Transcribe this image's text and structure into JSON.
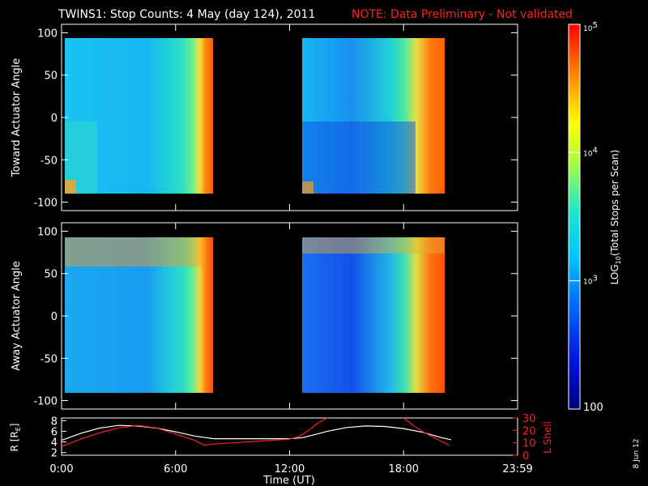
{
  "header": {
    "title": "TWINS1: Stop Counts:  4 May (day 124), 2011",
    "note": "NOTE: Data Preliminary - Not validated",
    "note_color": "#ff2020"
  },
  "footer": {
    "date_stamp": "8 Jun 12"
  },
  "chart_data": [
    {
      "type": "heatmap",
      "name": "toward-panel",
      "ylabel": "Toward Actuator Angle",
      "ylim": [
        -110,
        110
      ],
      "yticks": [
        100,
        50,
        0,
        -50,
        -100
      ],
      "xlim": [
        0,
        24
      ],
      "data_extent": {
        "y": [
          -88,
          90
        ]
      },
      "segments": [
        {
          "x": [
            0,
            7.92
          ]
        },
        {
          "x": [
            12.55,
            20.4
          ]
        }
      ],
      "colorscale": "rainbow"
    },
    {
      "type": "heatmap",
      "name": "away-panel",
      "ylabel": "Away Actuator Angle",
      "ylim": [
        -110,
        110
      ],
      "yticks": [
        100,
        50,
        0,
        -50,
        -100
      ],
      "xlim": [
        0,
        24
      ],
      "data_extent": {
        "y": [
          -88,
          90
        ]
      },
      "segments": [
        {
          "x": [
            0,
            7.92
          ]
        },
        {
          "x": [
            12.55,
            20.4
          ]
        }
      ],
      "colorscale": "rainbow"
    },
    {
      "type": "line",
      "name": "orbit-panel",
      "xlabel": "Time (UT)",
      "xticks": [
        {
          "value": 0,
          "label": "0:00"
        },
        {
          "value": 6,
          "label": "6:00"
        },
        {
          "value": 12,
          "label": "12:00"
        },
        {
          "value": 18,
          "label": "18:00"
        },
        {
          "value": 24,
          "label": "23:59"
        }
      ],
      "y_left": {
        "label": "R [RE]",
        "label_main": "R [R",
        "label_sub": "E",
        "label_end": "]",
        "ylim": [
          1.5,
          8.5
        ],
        "ticks": [
          2,
          4,
          6,
          8
        ],
        "color": "#ffffff"
      },
      "y_right": {
        "label": "L Shell",
        "ylim": [
          0,
          30
        ],
        "ticks": [
          0,
          10,
          20,
          30
        ],
        "color": "#ff2020"
      },
      "series": [
        {
          "axis": "left",
          "color": "#ffffff",
          "x": [
            0,
            1,
            2,
            3,
            4,
            5,
            6,
            7,
            8,
            9,
            10,
            11,
            12,
            12.7,
            14,
            15,
            16,
            17,
            18,
            19,
            20,
            20.5
          ],
          "y": [
            4.3,
            5.6,
            6.6,
            7.1,
            7.0,
            6.6,
            5.9,
            5.1,
            4.6,
            4.6,
            4.6,
            4.6,
            4.6,
            4.8,
            6.0,
            6.7,
            7.0,
            6.9,
            6.5,
            5.8,
            4.8,
            4.4
          ]
        },
        {
          "axis": "right",
          "color": "#ff2020",
          "x": [
            0,
            1,
            2,
            3,
            4,
            5,
            6,
            7,
            7.5,
            8,
            9,
            10,
            11,
            12,
            12.5,
            13,
            13.5,
            14
          ],
          "y": [
            7,
            13,
            18,
            22,
            24,
            22,
            17,
            12,
            8,
            9,
            10,
            11,
            12,
            13,
            15,
            20,
            26,
            30
          ],
          "x2": [
            18,
            18.5,
            19,
            19.5,
            20,
            20.4
          ],
          "y2": [
            30,
            24,
            19,
            15,
            11,
            8
          ]
        }
      ]
    },
    {
      "type": "colorbar",
      "name": "colorbar",
      "label": "LOG10(Total Stops per Scan)",
      "label_main": "LOG",
      "label_sub": "10",
      "label_end": "(Total Stops per Scan)",
      "range": [
        100,
        100000
      ],
      "ticks": [
        {
          "value": 100000,
          "label_main": "10",
          "label_sup": "5"
        },
        {
          "value": 10000,
          "label_main": "10",
          "label_sup": "4"
        },
        {
          "value": 1000,
          "label_main": "10",
          "label_sup": "3"
        },
        {
          "value": 100,
          "label_main": "100",
          "label_sup": ""
        }
      ]
    }
  ]
}
